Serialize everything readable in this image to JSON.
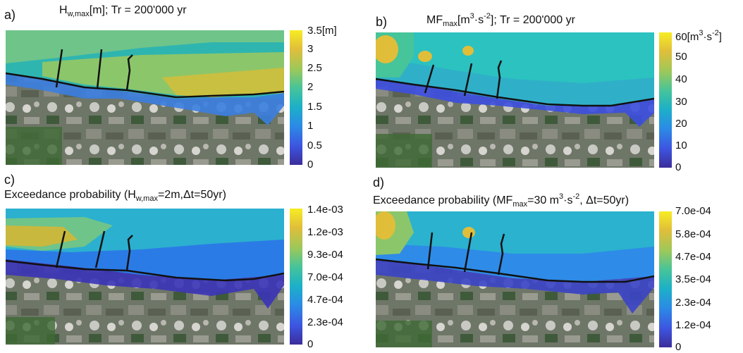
{
  "panels": [
    {
      "letter": "a)",
      "title_pre": "H",
      "title_sub": "w,max",
      "title_post": "[m]; Tr = 200'000 yr",
      "colorbar": {
        "unit_pre": "3.5[m]",
        "ticks": [
          "3",
          "2.5",
          "2",
          "1.5",
          "1",
          "0.5",
          "0"
        ]
      }
    },
    {
      "letter": "b)",
      "title_pre": "MF",
      "title_sub": "max",
      "title_mid": "[m",
      "title_sup1": "3",
      "title_mid2": "·s",
      "title_sup2": "-2",
      "title_post": "]; Tr = 200'000 yr",
      "colorbar": {
        "top_pre": "60[m",
        "top_sup1": "3",
        "top_mid": "·s",
        "top_sup2": "-2",
        "top_post": "]",
        "ticks": [
          "50",
          "40",
          "30",
          "20",
          "10",
          "0"
        ]
      }
    },
    {
      "letter": "c)",
      "title_pre": "Exceedance probability (H",
      "title_sub": "w,max",
      "title_post": "=2m,Δt=50yr)",
      "colorbar": {
        "ticks": [
          "1.4e-03",
          "1.2e-03",
          "9.3e-04",
          "7.0e-04",
          "4.7e-04",
          "2.3e-04",
          "0"
        ]
      }
    },
    {
      "letter": "d)",
      "title_pre": "Exceedance probability (MF",
      "title_sub": "max",
      "title_mid": "=30 m",
      "title_sup1": "3",
      "title_mid2": "·s",
      "title_sup2": "-2",
      "title_post": ", Δt=50yr)",
      "colorbar": {
        "ticks": [
          "7.0e-04",
          "5.8e-04",
          "4.7e-04",
          "3.5e-04",
          "2.3e-04",
          "1.2e-04",
          "0"
        ]
      }
    }
  ],
  "colormap": [
    "#3b2d9a",
    "#3d55e0",
    "#2b8be6",
    "#1cb0c8",
    "#46c49a",
    "#9cc85a",
    "#e0be3a",
    "#f7ec23"
  ]
}
